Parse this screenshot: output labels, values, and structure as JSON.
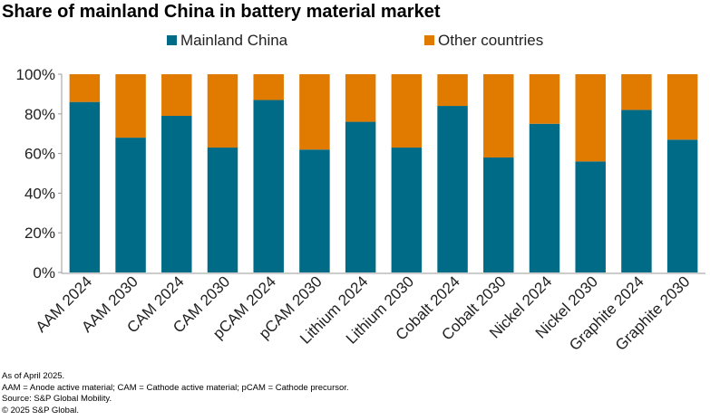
{
  "chart_data": {
    "type": "bar",
    "stacked": true,
    "title": "Share of mainland China in battery material market",
    "categories": [
      "AAM 2024",
      "AAM 2030",
      "CAM 2024",
      "CAM 2030",
      "pCAM 2024",
      "pCAM 2030",
      "Lithium 2024",
      "Lithium 2030",
      "Cobalt 2024",
      "Cobalt 2030",
      "Nickel 2024",
      "Nickel 2030",
      "Graphite 2024",
      "Graphite 2030"
    ],
    "series": [
      {
        "name": "Mainland China",
        "color": "#006b86",
        "values": [
          86,
          68,
          79,
          63,
          87,
          62,
          76,
          63,
          84,
          58,
          75,
          56,
          82,
          67
        ]
      },
      {
        "name": "Other countries",
        "color": "#e07b00",
        "values": [
          14,
          32,
          21,
          37,
          13,
          38,
          24,
          37,
          16,
          42,
          25,
          44,
          18,
          33
        ]
      }
    ],
    "ylim": [
      0,
      100
    ],
    "yticks": [
      "0%",
      "20%",
      "40%",
      "60%",
      "80%",
      "100%"
    ],
    "ytick_values": [
      0,
      20,
      40,
      60,
      80,
      100
    ],
    "xlabel": "",
    "ylabel": "",
    "legend": "top-center",
    "grid": false
  },
  "footnotes": [
    "As of April 2025.",
    "AAM  = Anode active material; CAM = Cathode active material; pCAM = Cathode precursor.",
    "Source: S&P Global Mobility.",
    "© 2025 S&P Global."
  ]
}
